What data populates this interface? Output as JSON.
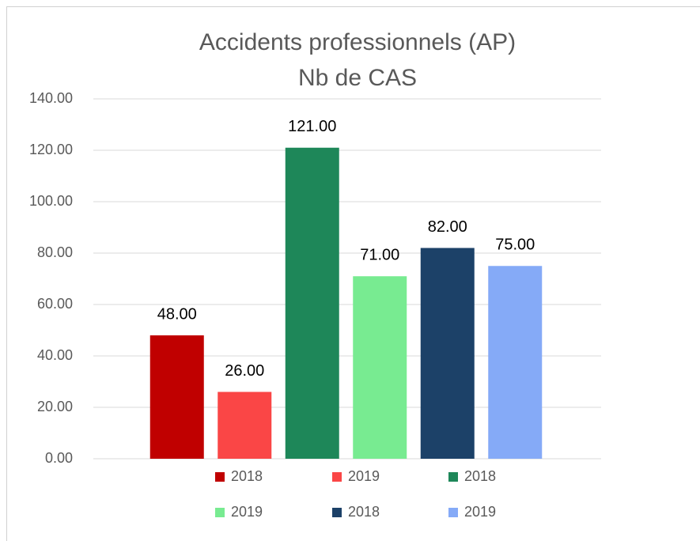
{
  "chart_data": {
    "type": "bar",
    "title": "Accidents professionnels (AP)",
    "subtitle": "Nb de CAS",
    "categories": [
      null
    ],
    "series": [
      {
        "name": "2018",
        "color": "#c00000",
        "values": [
          48
        ],
        "value_labels": [
          "48.00"
        ]
      },
      {
        "name": "2019",
        "color": "#fa4646",
        "values": [
          26
        ],
        "value_labels": [
          "26.00"
        ]
      },
      {
        "name": "2018",
        "color": "#1e8759",
        "values": [
          121
        ],
        "value_labels": [
          "121.00"
        ]
      },
      {
        "name": "2019",
        "color": "#78eb91",
        "values": [
          71
        ],
        "value_labels": [
          "71.00"
        ]
      },
      {
        "name": "2018",
        "color": "#1c4168",
        "values": [
          82
        ],
        "value_labels": [
          "82.00"
        ]
      },
      {
        "name": "2019",
        "color": "#85aaf7",
        "values": [
          75
        ],
        "value_labels": [
          "75.00"
        ]
      }
    ],
    "ylim": [
      0,
      140
    ],
    "yticks": [
      {
        "value": 0,
        "label": "0.00"
      },
      {
        "value": 20,
        "label": "20.00"
      },
      {
        "value": 40,
        "label": "40.00"
      },
      {
        "value": 60,
        "label": "60.00"
      },
      {
        "value": 80,
        "label": "80.00"
      },
      {
        "value": 100,
        "label": "100.00"
      },
      {
        "value": 120,
        "label": "120.00"
      },
      {
        "value": 140,
        "label": "140.00"
      }
    ],
    "grid": true,
    "legend": "bottom"
  }
}
